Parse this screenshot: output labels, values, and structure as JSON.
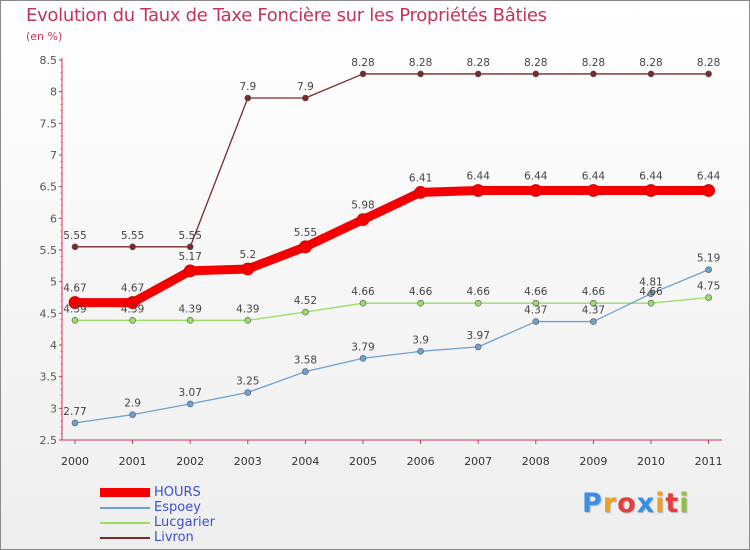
{
  "chart_data": {
    "type": "line",
    "title": "Evolution du Taux de Taxe Foncière sur les Propriétés Bâties",
    "ylabel": "(en %)",
    "xlabel": "",
    "categories": [
      "2000",
      "2001",
      "2002",
      "2003",
      "2004",
      "2005",
      "2006",
      "2007",
      "2008",
      "2009",
      "2010",
      "2011"
    ],
    "ylim": [
      2.5,
      8.5
    ],
    "yticks": [
      "2.5",
      "3",
      "3.5",
      "4",
      "4.5",
      "5",
      "5.5",
      "6",
      "6.5",
      "7",
      "7.5",
      "8",
      "8.5"
    ],
    "grid": false,
    "legend_position": "bottom-left",
    "series": [
      {
        "name": "HOURS",
        "color": "#f40000",
        "values": [
          4.67,
          4.67,
          5.17,
          5.2,
          5.55,
          5.98,
          6.41,
          6.44,
          6.44,
          6.44,
          6.44,
          6.44
        ],
        "labels": [
          "4.67",
          "4.67",
          "5.17",
          "5.2",
          "5.55",
          "5.98",
          "6.41",
          "6.44",
          "6.44",
          "6.44",
          "6.44",
          "6.44"
        ]
      },
      {
        "name": "Espoey",
        "color": "#6fa0d0",
        "values": [
          2.77,
          2.9,
          3.07,
          3.25,
          3.58,
          3.79,
          3.9,
          3.97,
          4.37,
          4.37,
          4.81,
          5.19
        ],
        "labels": [
          "2.77",
          "2.9",
          "3.07",
          "3.25",
          "3.58",
          "3.79",
          "3.9",
          "3.97",
          "4.37",
          "4.37",
          "4.81",
          "5.19"
        ]
      },
      {
        "name": "Lucgarier",
        "color": "#99dd66",
        "values": [
          4.39,
          4.39,
          4.39,
          4.39,
          4.52,
          4.66,
          4.66,
          4.66,
          4.66,
          4.66,
          4.66,
          4.75
        ],
        "labels": [
          "4.39",
          "4.39",
          "4.39",
          "4.39",
          "4.52",
          "4.66",
          "4.66",
          "4.66",
          "4.66",
          "4.66",
          "4.66",
          "4.75"
        ]
      },
      {
        "name": "Livron",
        "color": "#7a2a2a",
        "values": [
          5.55,
          5.55,
          5.55,
          7.9,
          7.9,
          8.28,
          8.28,
          8.28,
          8.28,
          8.28,
          8.28,
          8.28
        ],
        "labels": [
          "5.55",
          "5.55",
          "5.55",
          "7.9",
          "7.9",
          "8.28",
          "8.28",
          "8.28",
          "8.28",
          "8.28",
          "8.28",
          "8.28"
        ]
      }
    ]
  },
  "logo": {
    "letters": [
      "P",
      "r",
      "o",
      "x",
      "i",
      "t",
      "i"
    ],
    "colors": [
      "#3a8ee6",
      "#f0a020",
      "#e04040",
      "#3a8ee6",
      "#f0a020",
      "#e04040",
      "#90c040"
    ]
  }
}
